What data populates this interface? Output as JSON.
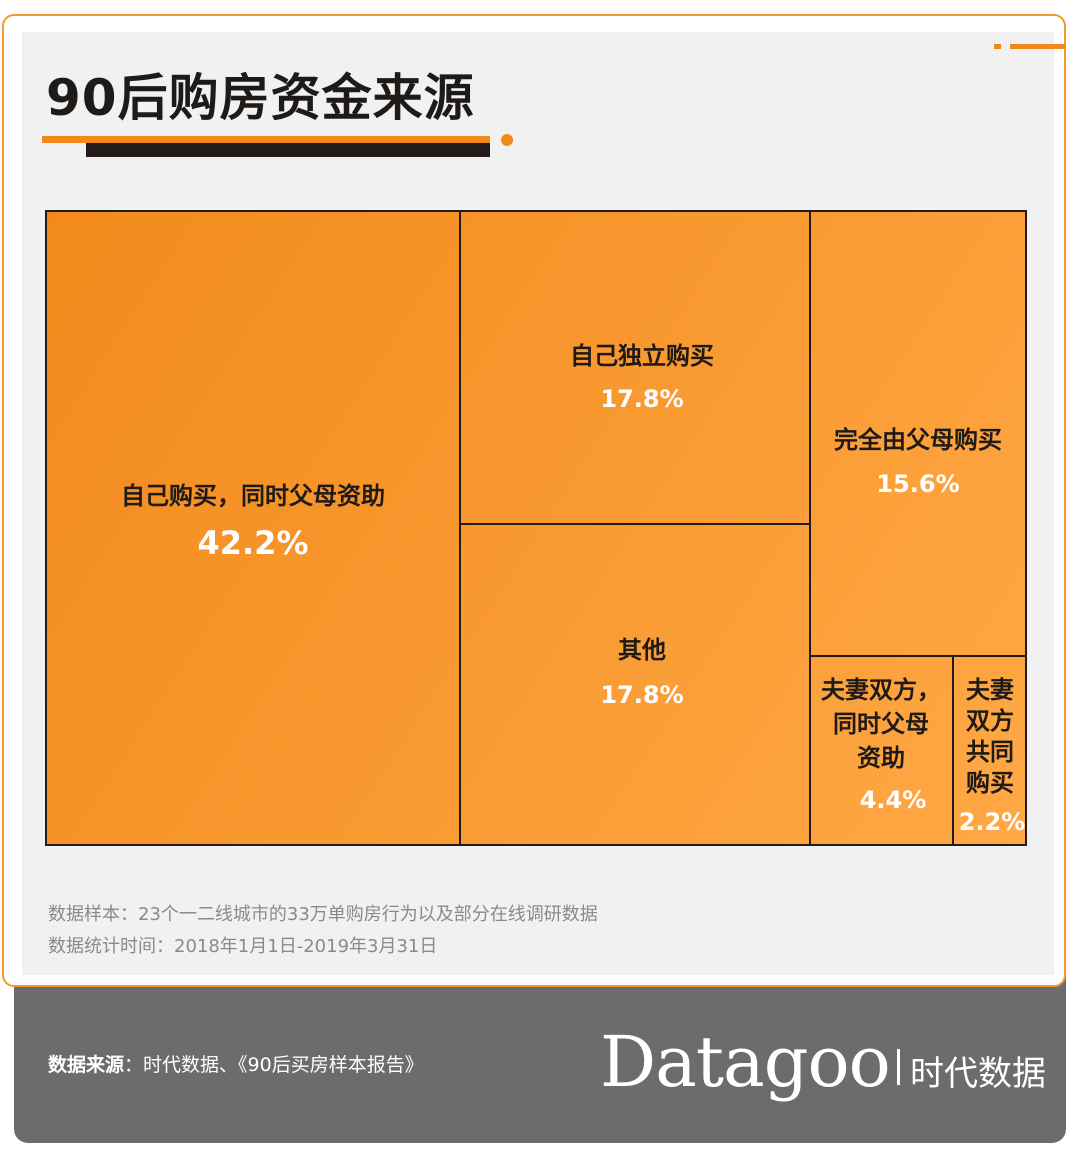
{
  "title": "90后购房资金来源",
  "chart_data": {
    "type": "treemap",
    "title": "90后购房资金来源",
    "items": [
      {
        "label": "自己购买，同时父母资助",
        "value": 42.2,
        "value_text": "42.2%"
      },
      {
        "label": "自己独立购买",
        "value": 17.8,
        "value_text": "17.8%"
      },
      {
        "label": "其他",
        "value": 17.8,
        "value_text": "17.8%"
      },
      {
        "label": "完全由父母购买",
        "value": 15.6,
        "value_text": "15.6%"
      },
      {
        "label": "夫妻双方，同时父母资助",
        "value": 4.4,
        "value_text": "4.4%",
        "label_lines": [
          "夫妻双方，",
          "同时父母",
          "资助"
        ]
      },
      {
        "label": "夫妻双方共同购买",
        "value": 2.2,
        "value_text": "2.2%",
        "label_lines": [
          "夫妻",
          "双方",
          "共同",
          "购买"
        ]
      }
    ]
  },
  "notes": {
    "sample": "数据样本：23个一二线城市的33万单购房行为以及部分在线调研数据",
    "period": "数据统计时间：2018年1月1日-2019年3月31日"
  },
  "footer": {
    "source_label": "数据来源",
    "source_text": "：时代数据、《90后买房样本报告》",
    "brand": "Datagoo",
    "brand_cn": "时代数据"
  },
  "colors": {
    "accent": "#f28a1b",
    "fill_start": "#f28a1b",
    "fill_end": "#ffa845",
    "border": "#231c1a",
    "footer_bg": "#6c6c6c"
  }
}
